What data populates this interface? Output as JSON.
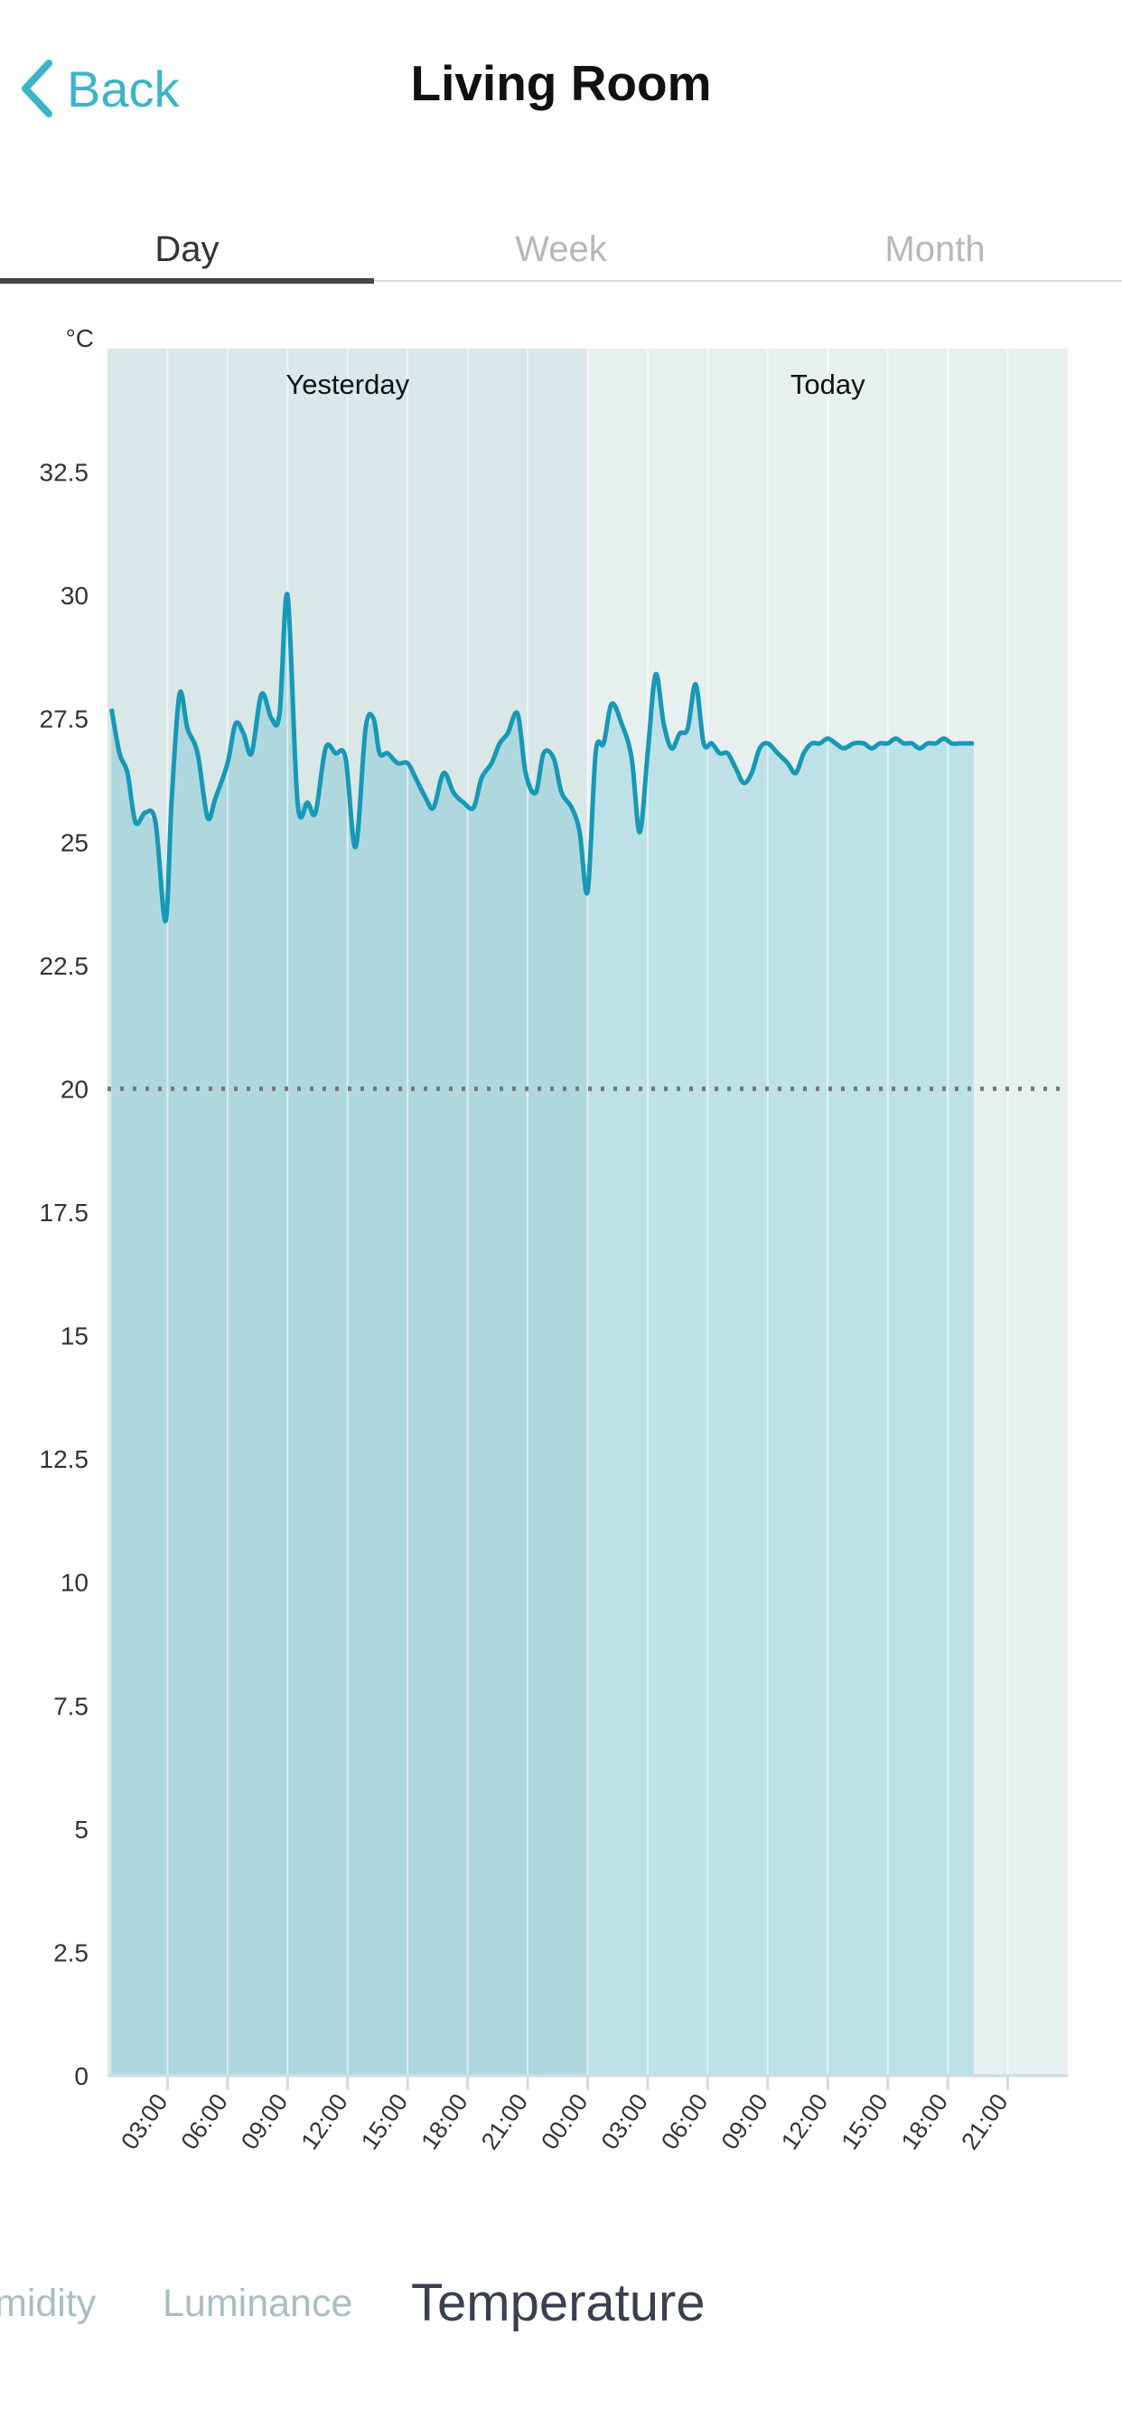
{
  "nav": {
    "back_label": "Back",
    "title": "Living Room"
  },
  "period_tabs": [
    "Day",
    "Week",
    "Month"
  ],
  "active_period": "Day",
  "sensor_tabs": [
    "midity",
    "Luminance",
    "Temperature"
  ],
  "active_sensor": "Temperature",
  "colors": {
    "accent": "#3ab5c9",
    "line": "#1798b6",
    "fill_yesterday": "#afd8de",
    "fill_today": "#bde1e6",
    "bg_yesterday": "#d9e7e6",
    "bg_today": "#e8f0ef",
    "reference": "#777777"
  },
  "chart_data": {
    "type": "area",
    "y_unit": "°C",
    "ylim": [
      0,
      35
    ],
    "yticks": [
      "0",
      "2.5",
      "5",
      "7.5",
      "10",
      "12.5",
      "15",
      "17.5",
      "20",
      "22.5",
      "25",
      "27.5",
      "30",
      "32.5"
    ],
    "x_unit": "hours since 00:00 yesterday",
    "xlim": [
      0,
      48
    ],
    "xticks": [
      {
        "x": 3,
        "label": "03:00"
      },
      {
        "x": 6,
        "label": "06:00"
      },
      {
        "x": 9,
        "label": "09:00"
      },
      {
        "x": 12,
        "label": "12:00"
      },
      {
        "x": 15,
        "label": "15:00"
      },
      {
        "x": 18,
        "label": "18:00"
      },
      {
        "x": 21,
        "label": "21:00"
      },
      {
        "x": 24,
        "label": "00:00"
      },
      {
        "x": 27,
        "label": "03:00"
      },
      {
        "x": 30,
        "label": "06:00"
      },
      {
        "x": 33,
        "label": "09:00"
      },
      {
        "x": 36,
        "label": "12:00"
      },
      {
        "x": 39,
        "label": "15:00"
      },
      {
        "x": 42,
        "label": "18:00"
      },
      {
        "x": 45,
        "label": "21:00"
      }
    ],
    "periods": [
      {
        "label": "Yesterday",
        "from": 0,
        "to": 24
      },
      {
        "label": "Today",
        "from": 24,
        "to": 48
      }
    ],
    "reference_line": 20,
    "series": [
      {
        "x": [
          0.2,
          0.6,
          1.0,
          1.4,
          1.9,
          2.4,
          2.9,
          3.2,
          3.6,
          4.0,
          4.5,
          5.0,
          5.4,
          6.0,
          6.4,
          6.8,
          7.2,
          7.7,
          8.2,
          8.6,
          9.0,
          9.5,
          10.0,
          10.4,
          10.9,
          11.4,
          11.9,
          12.4,
          12.9,
          13.3,
          13.6,
          14.0,
          14.5,
          15.0,
          15.4,
          15.9,
          16.3,
          16.8,
          17.3,
          17.8,
          18.3,
          18.7,
          19.2,
          19.6,
          20.0,
          20.5,
          20.9,
          21.4,
          21.8,
          22.3,
          22.7,
          23.2,
          23.6,
          24.0,
          24.4,
          24.8,
          25.2,
          25.7,
          26.2,
          26.6,
          27.0,
          27.4,
          27.8,
          28.2,
          28.6,
          29.0,
          29.4,
          29.8,
          30.2,
          30.6,
          31.0,
          31.4,
          31.8,
          32.2,
          32.6,
          33.0,
          33.5,
          34.0,
          34.4,
          34.8,
          35.2,
          35.6,
          36.0,
          36.4,
          36.8,
          37.3,
          37.8,
          38.2,
          38.6,
          39.0,
          39.4,
          39.8,
          40.2,
          40.6,
          41.0,
          41.4,
          41.8,
          42.2,
          42.6,
          43.0,
          43.3
        ],
        "values": [
          27.7,
          26.8,
          26.4,
          25.4,
          25.6,
          25.4,
          23.4,
          25.8,
          28.0,
          27.3,
          26.8,
          25.5,
          25.9,
          26.6,
          27.4,
          27.2,
          26.8,
          28.0,
          27.5,
          27.6,
          30.0,
          25.8,
          25.8,
          25.6,
          26.9,
          26.8,
          26.7,
          24.9,
          27.3,
          27.5,
          26.8,
          26.8,
          26.6,
          26.6,
          26.3,
          25.9,
          25.7,
          26.4,
          26.0,
          25.8,
          25.7,
          26.3,
          26.6,
          27.0,
          27.2,
          27.6,
          26.4,
          26.0,
          26.8,
          26.7,
          26.0,
          25.7,
          25.2,
          24.0,
          26.8,
          27.0,
          27.8,
          27.4,
          26.7,
          25.2,
          26.8,
          28.4,
          27.4,
          26.9,
          27.2,
          27.3,
          28.2,
          27.0,
          27.0,
          26.8,
          26.8,
          26.5,
          26.2,
          26.4,
          26.9,
          27.0,
          26.8,
          26.6,
          26.4,
          26.8,
          27.0,
          27.0,
          27.1,
          27.0,
          26.9,
          27.0,
          27.0,
          26.9,
          27.0,
          27.0,
          27.1,
          27.0,
          27.0,
          26.9,
          27.0,
          27.0,
          27.1,
          27.0,
          27.0,
          27.0,
          27.0
        ]
      }
    ]
  }
}
